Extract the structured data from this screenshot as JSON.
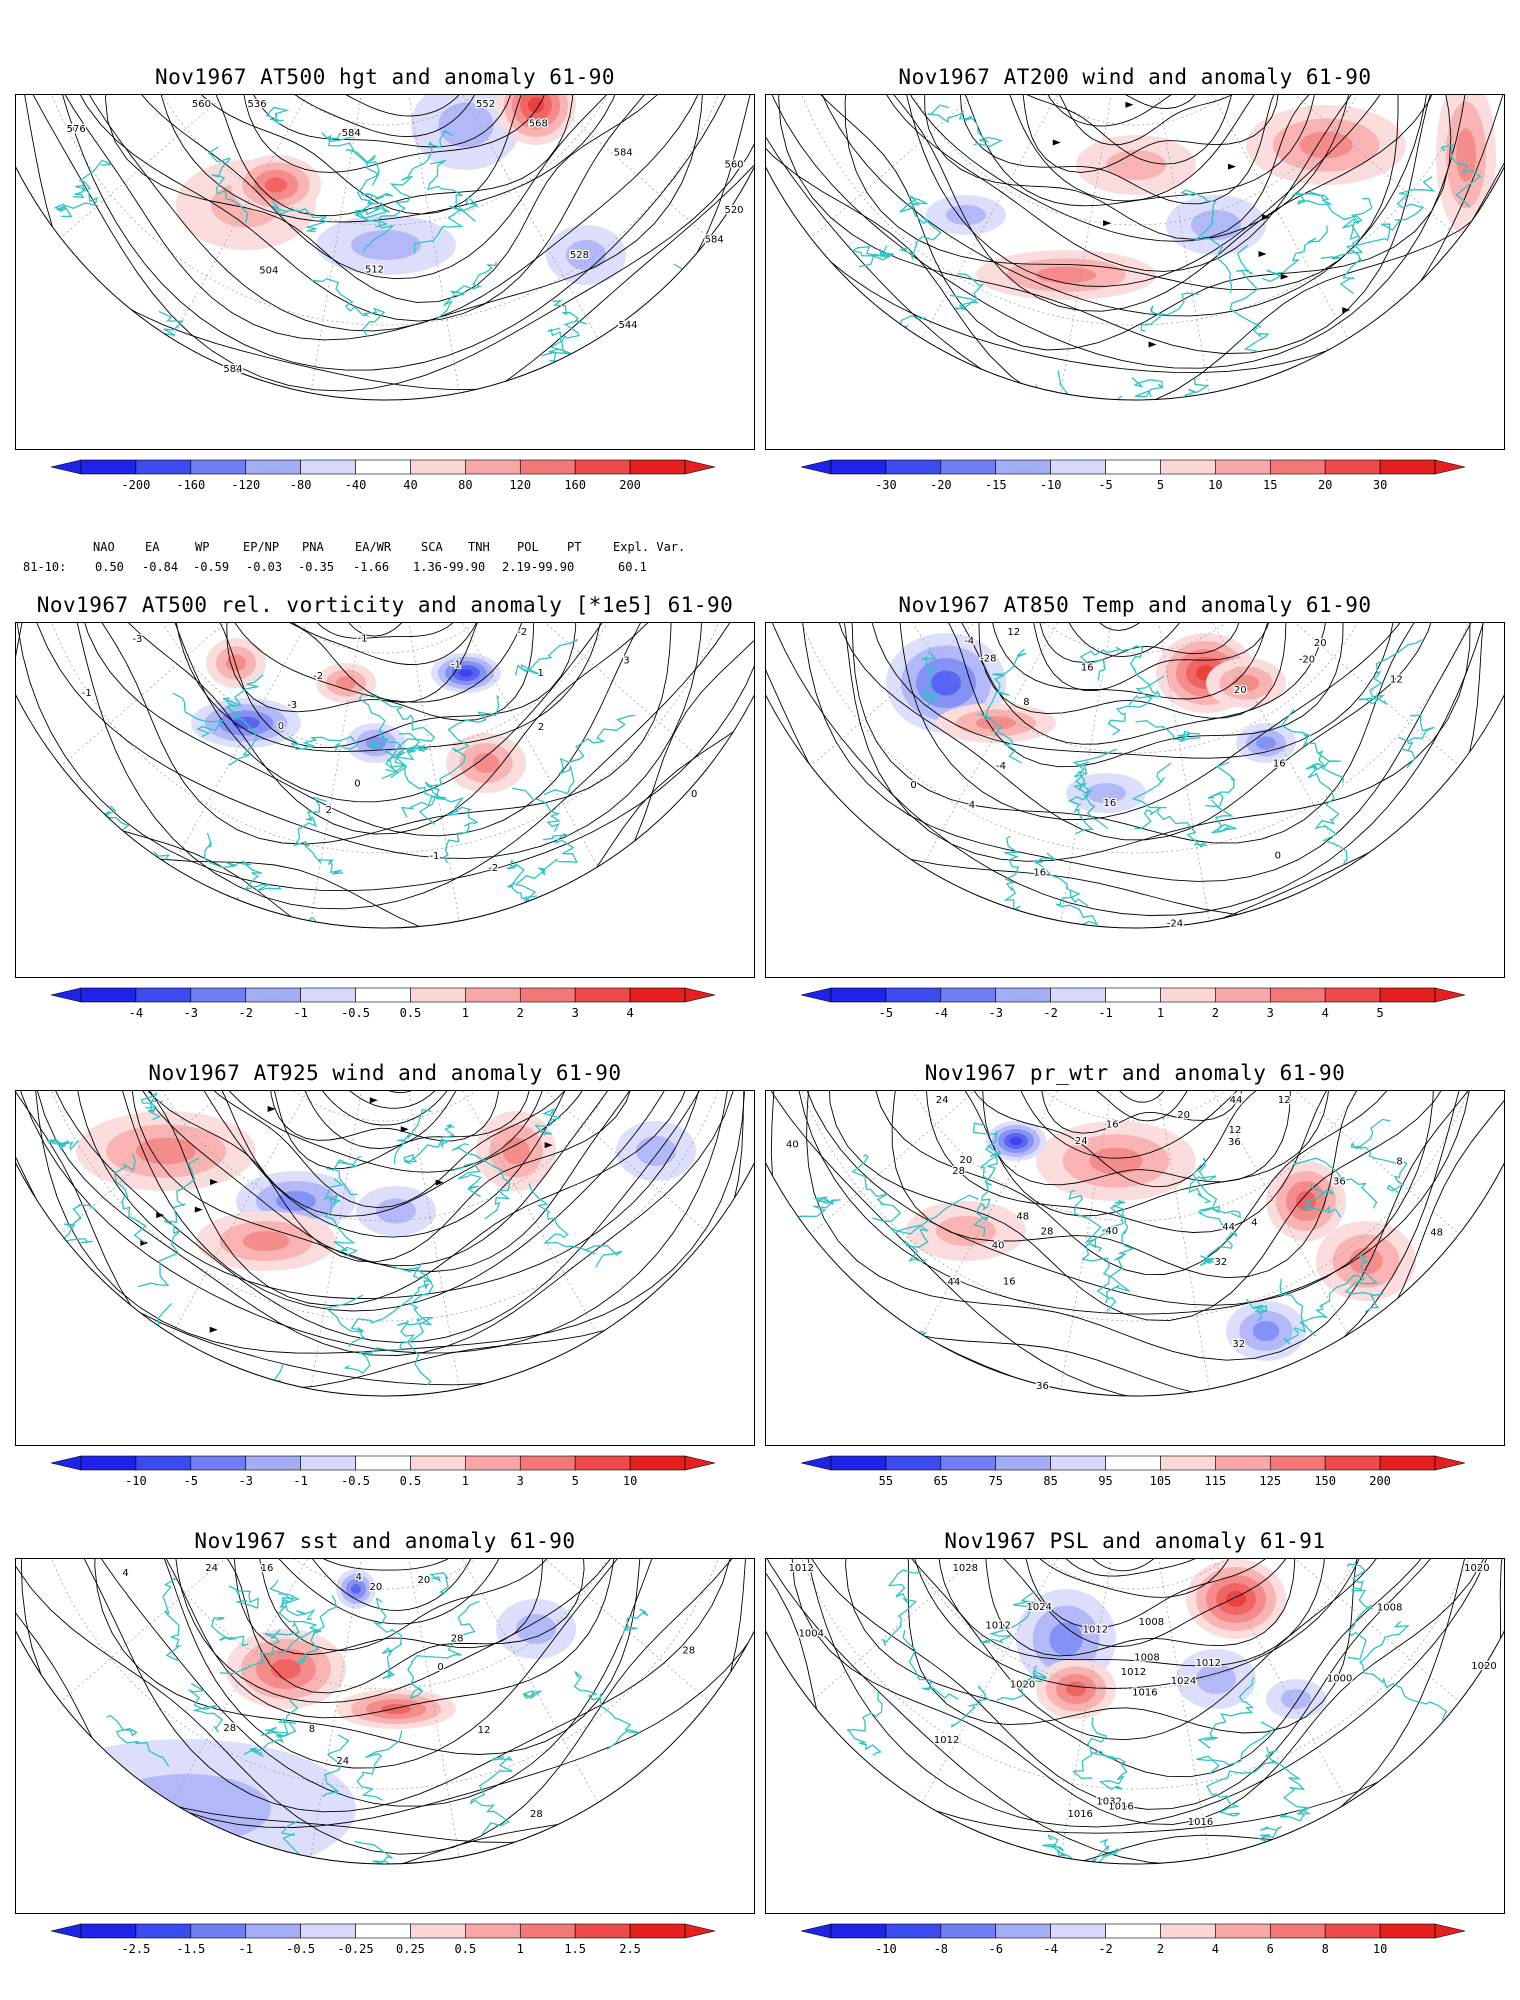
{
  "panels": [
    {
      "id": "p1",
      "title": "Nov1967 AT500 hgt and anomaly 61-90",
      "kind": "contour",
      "levels": [
        "-200",
        "-160",
        "-120",
        "-80",
        "-40",
        "40",
        "80",
        "120",
        "160",
        "200"
      ],
      "contour_labels": [
        "504",
        "512",
        "520",
        "528",
        "536",
        "544",
        "552",
        "560",
        "560",
        "568",
        "576",
        "584",
        "584",
        "584",
        "584"
      ]
    },
    {
      "id": "p2",
      "title": "Nov1967 AT200 wind and anomaly 61-90",
      "kind": "wind",
      "levels": [
        "-30",
        "-20",
        "-15",
        "-10",
        "-5",
        "5",
        "10",
        "15",
        "20",
        "30"
      ],
      "contour_labels": []
    },
    {
      "id": "p3",
      "title": "Nov1967 AT500 rel. vorticity and anomaly [*1e5] 61-90",
      "kind": "contour",
      "levels": [
        "-4",
        "-3",
        "-2",
        "-1",
        "-0.5",
        "0.5",
        "1",
        "2",
        "3",
        "4"
      ],
      "contour_labels": [
        "-3",
        "-2",
        "-1",
        "0",
        "1",
        "2",
        "3",
        "-2",
        "-1",
        "0",
        "2",
        "-1",
        "-2",
        "-3",
        "0",
        "-1"
      ]
    },
    {
      "id": "p4",
      "title": "Nov1967 AT850 Temp and anomaly 61-90",
      "kind": "contour",
      "levels": [
        "-5",
        "-4",
        "-3",
        "-2",
        "-1",
        "1",
        "2",
        "3",
        "4",
        "5"
      ],
      "contour_labels": [
        "16",
        "-24",
        "-28",
        "-20",
        "-4",
        "0",
        "4",
        "8",
        "12",
        "16",
        "20",
        "20",
        "16",
        "12",
        "-4",
        "0",
        "16"
      ]
    },
    {
      "id": "p5",
      "title": "Nov1967 AT925 wind and anomaly 61-90",
      "kind": "wind",
      "levels": [
        "-10",
        "-5",
        "-3",
        "-1",
        "-0.5",
        "0.5",
        "1",
        "3",
        "5",
        "10"
      ],
      "contour_labels": []
    },
    {
      "id": "p6",
      "title": "Nov1967 pr_wtr and anomaly 61-90",
      "kind": "contour",
      "levels": [
        "55",
        "65",
        "75",
        "85",
        "95",
        "105",
        "115",
        "125",
        "150",
        "200"
      ],
      "contour_labels": [
        "28",
        "32",
        "36",
        "40",
        "44",
        "48",
        "12",
        "16",
        "20",
        "24",
        "28",
        "36",
        "40",
        "44",
        "12",
        "16",
        "20",
        "8",
        "4",
        "24",
        "32",
        "36",
        "40",
        "44",
        "48"
      ]
    },
    {
      "id": "p7",
      "title": "Nov1967 sst and anomaly 61-90",
      "kind": "contour",
      "levels": [
        "-2.5",
        "-1.5",
        "-1",
        "-0.5",
        "-0.25",
        "0.25",
        "0.5",
        "1",
        "1.5",
        "2.5"
      ],
      "contour_labels": [
        "28",
        "24",
        "28",
        "4",
        "8",
        "12",
        "16",
        "20",
        "24",
        "28",
        "20",
        "0",
        "4",
        "28"
      ]
    },
    {
      "id": "p8",
      "title": "Nov1967 PSL and anomaly 61-91",
      "kind": "contour",
      "levels": [
        "-10",
        "-8",
        "-6",
        "-4",
        "-2",
        "2",
        "4",
        "6",
        "8",
        "10"
      ],
      "contour_labels": [
        "1012",
        "1008",
        "1004",
        "1000",
        "1020",
        "1024",
        "1032",
        "1028",
        "1020",
        "1016",
        "1012",
        "1008",
        "1016",
        "1020",
        "1024",
        "1016",
        "1012",
        "1012",
        "1012",
        "1012",
        "1016",
        "1008"
      ]
    }
  ],
  "index_table": {
    "header": [
      "NAO",
      "EA",
      "WP",
      "EP/NP",
      "PNA",
      "EA/WR",
      "SCA",
      "TNH",
      "POL",
      "PT",
      "Expl. Var."
    ],
    "row_label": "81-10:",
    "row_values": [
      "0.50",
      "-0.84",
      "-0.59",
      "-0.03",
      "-0.35",
      "-1.66",
      "1.36-99.90",
      "2.19-99.90",
      "60.1"
    ]
  },
  "colors": {
    "coast": "#2ec4c4",
    "neg": [
      "#1f23e8",
      "#3a4bf0",
      "#6f7ef4",
      "#a6adf7",
      "#d6d9fb"
    ],
    "pos": [
      "#fbd7d7",
      "#f8a6a6",
      "#f47878",
      "#ef4a4a",
      "#e81f1f"
    ],
    "contour": "#000000",
    "grid": "#9a9a9a"
  }
}
